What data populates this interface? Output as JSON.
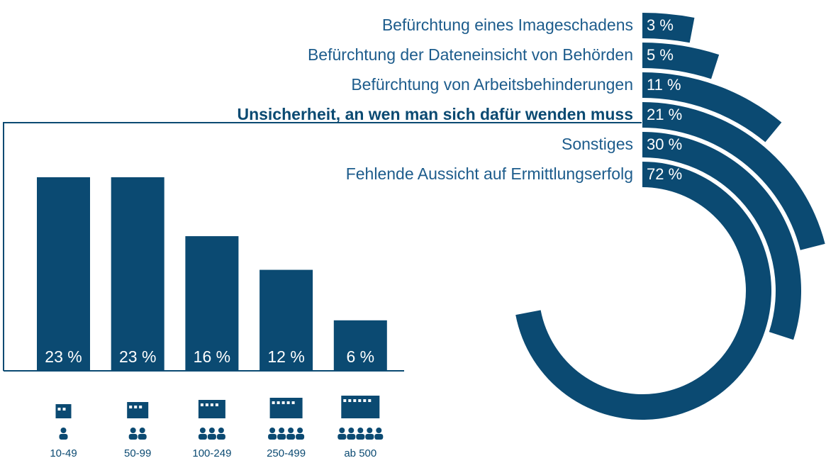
{
  "chart_data": [
    {
      "type": "radial",
      "categories": [
        "Befürchtung eines Imageschadens",
        "Befürchtung der Dateneinsicht von Behörden",
        "Befürchtung von Arbeitsbehinderungen",
        "Unsicherheit, an wen man sich dafür wenden muss",
        "Sonstiges",
        "Fehlende Aussicht auf Ermittlungserfolg"
      ],
      "values": [
        3,
        5,
        11,
        21,
        30,
        72
      ],
      "value_labels": [
        "3 %",
        "5 %",
        "11 %",
        "21 %",
        "30 %",
        "72 %"
      ],
      "bold": [
        false,
        false,
        false,
        true,
        false,
        false
      ],
      "color": "#0b4a72"
    },
    {
      "type": "bar",
      "categories": [
        "10-49",
        "50-99",
        "100-249",
        "250-499",
        "ab 500"
      ],
      "values": [
        23,
        23,
        16,
        12,
        6
      ],
      "value_labels": [
        "23 %",
        "23 %",
        "16 %",
        "12 %",
        "6 %"
      ],
      "color": "#0b4a72",
      "ylim": [
        0,
        25
      ]
    }
  ]
}
